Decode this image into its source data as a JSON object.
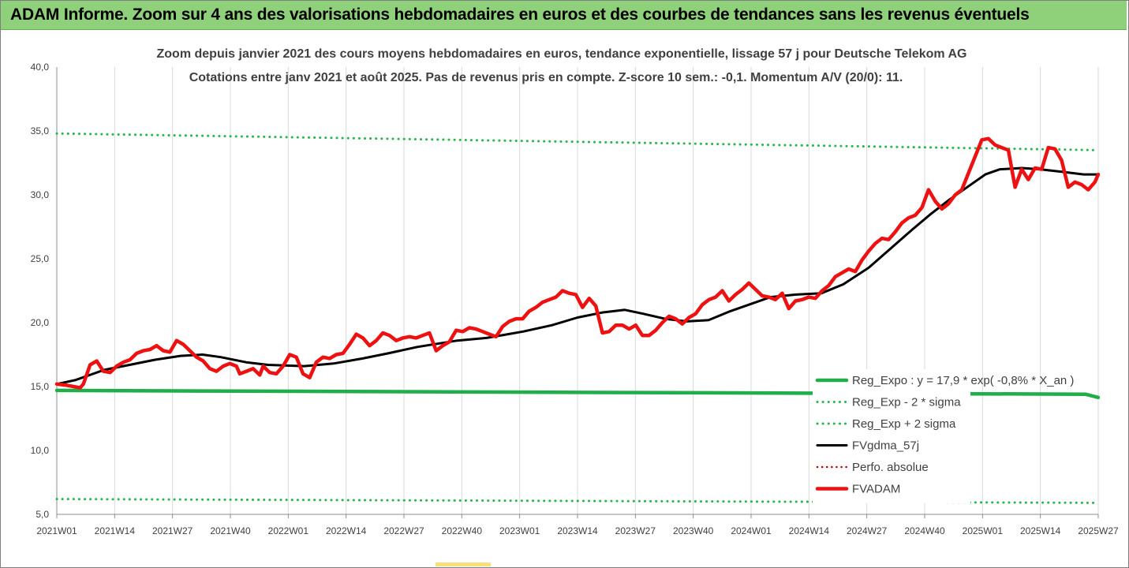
{
  "banner": {
    "title": "ADAM Informe. Zoom sur 4 ans des valorisations hebdomadaires en euros et des courbes de tendances sans les revenus éventuels"
  },
  "colors": {
    "banner_bg": "#8fd07a",
    "reg_expo": "#1fae4a",
    "reg_sigma": "#2ab54f",
    "fvgdma": "#000000",
    "perfo": "#c00000",
    "fvadam": "#ee1111"
  },
  "chart_data": {
    "type": "line",
    "title": [
      "Zoom depuis janvier 2021 des cours moyens hebdomadaires en euros, tendance exponentielle, lissage 57 j pour Deutsche Telekom AG",
      "Cotations entre janv 2021 et août 2025. Pas de revenus pris en compte. Z-score 10 sem.: -0,1. Momentum A/V (20/0): 11."
    ],
    "ylim": [
      5,
      40
    ],
    "y_ticks": [
      "5,0",
      "10,0",
      "15,0",
      "20,0",
      "25,0",
      "30,0",
      "35,0",
      "40,0"
    ],
    "x_ticks": [
      "2021W01",
      "2021W14",
      "2021W27",
      "2021W40",
      "2022W01",
      "2022W14",
      "2022W27",
      "2022W40",
      "2023W01",
      "2023W14",
      "2023W27",
      "2023W40",
      "2024W01",
      "2024W14",
      "2024W27",
      "2024W40",
      "2025W01",
      "2025W14",
      "2025W27"
    ],
    "grid": "vertical",
    "legend_position": "bottom-right",
    "series": [
      {
        "name": "Reg_Expo : y = 17,9 * exp( -0,8% * X_an )",
        "style": "solid-thick",
        "points": [
          [
            0,
            14.7
          ],
          [
            240,
            14.4
          ],
          [
            243,
            14.15
          ]
        ]
      },
      {
        "name": "Reg_Exp - 2 * sigma",
        "style": "dotted",
        "points": [
          [
            0,
            6.2
          ],
          [
            243,
            5.9
          ]
        ]
      },
      {
        "name": "Reg_Exp + 2 sigma",
        "style": "dotted",
        "points": [
          [
            0,
            34.8
          ],
          [
            243,
            33.5
          ]
        ]
      },
      {
        "name": "FVgdma_57j",
        "style": "solid",
        "points": [
          [
            0,
            15.2
          ],
          [
            5,
            15.5
          ],
          [
            13,
            16.3
          ],
          [
            20,
            16.7
          ],
          [
            27,
            17.1
          ],
          [
            34,
            17.4
          ],
          [
            40,
            17.5
          ],
          [
            45,
            17.3
          ],
          [
            52,
            16.9
          ],
          [
            58,
            16.7
          ],
          [
            68,
            16.6
          ],
          [
            76,
            16.8
          ],
          [
            84,
            17.2
          ],
          [
            91,
            17.6
          ],
          [
            99,
            18.1
          ],
          [
            110,
            18.6
          ],
          [
            118,
            18.8
          ],
          [
            128,
            19.3
          ],
          [
            136,
            19.8
          ],
          [
            143,
            20.4
          ],
          [
            150,
            20.8
          ],
          [
            156,
            21.0
          ],
          [
            161,
            20.7
          ],
          [
            167,
            20.3
          ],
          [
            173,
            20.1
          ],
          [
            179,
            20.2
          ],
          [
            185,
            20.9
          ],
          [
            191,
            21.5
          ],
          [
            196,
            22.0
          ],
          [
            203,
            22.2
          ],
          [
            210,
            22.3
          ],
          [
            216,
            23.0
          ],
          [
            223,
            24.3
          ],
          [
            229,
            25.8
          ],
          [
            235,
            27.3
          ],
          [
            240,
            28.5
          ],
          [
            245,
            29.6
          ],
          [
            250,
            30.6
          ],
          [
            255,
            31.6
          ],
          [
            259,
            32.0
          ],
          [
            265,
            32.1
          ],
          [
            270,
            32.0
          ],
          [
            276,
            31.8
          ],
          [
            282,
            31.6
          ],
          [
            286,
            31.6
          ]
        ]
      },
      {
        "name": "Perfo. absolue",
        "style": "dotted",
        "points": []
      },
      {
        "name": "FVADAM",
        "style": "solid-thick",
        "points": [
          [
            0,
            15.2
          ],
          [
            3,
            15.1
          ],
          [
            5,
            15.0
          ],
          [
            7,
            14.9
          ],
          [
            8,
            15.2
          ],
          [
            10,
            16.7
          ],
          [
            12,
            17.0
          ],
          [
            14,
            16.2
          ],
          [
            16,
            16.1
          ],
          [
            18,
            16.6
          ],
          [
            20,
            16.9
          ],
          [
            22,
            17.1
          ],
          [
            24,
            17.6
          ],
          [
            26,
            17.8
          ],
          [
            28,
            17.9
          ],
          [
            30,
            18.2
          ],
          [
            32,
            17.8
          ],
          [
            34,
            17.7
          ],
          [
            36,
            18.6
          ],
          [
            38,
            18.3
          ],
          [
            40,
            17.8
          ],
          [
            42,
            17.3
          ],
          [
            44,
            17.0
          ],
          [
            46,
            16.4
          ],
          [
            48,
            16.2
          ],
          [
            50,
            16.6
          ],
          [
            52,
            16.8
          ],
          [
            54,
            16.6
          ],
          [
            55,
            16.0
          ],
          [
            57,
            16.2
          ],
          [
            59,
            16.4
          ],
          [
            61,
            15.9
          ],
          [
            62,
            16.6
          ],
          [
            64,
            16.1
          ],
          [
            66,
            16.0
          ],
          [
            68,
            16.6
          ],
          [
            70,
            17.5
          ],
          [
            72,
            17.3
          ],
          [
            74,
            16.0
          ],
          [
            76,
            15.7
          ],
          [
            78,
            16.9
          ],
          [
            80,
            17.3
          ],
          [
            82,
            17.2
          ],
          [
            84,
            17.5
          ],
          [
            86,
            17.6
          ],
          [
            88,
            18.3
          ],
          [
            90,
            19.1
          ],
          [
            92,
            18.8
          ],
          [
            94,
            18.2
          ],
          [
            96,
            18.6
          ],
          [
            98,
            19.2
          ],
          [
            100,
            19.0
          ],
          [
            102,
            18.6
          ],
          [
            104,
            18.8
          ],
          [
            106,
            18.9
          ],
          [
            108,
            18.8
          ],
          [
            110,
            19.0
          ],
          [
            112,
            19.2
          ],
          [
            114,
            17.8
          ],
          [
            116,
            18.2
          ],
          [
            118,
            18.5
          ],
          [
            120,
            19.4
          ],
          [
            122,
            19.3
          ],
          [
            124,
            19.6
          ],
          [
            126,
            19.5
          ],
          [
            128,
            19.3
          ],
          [
            130,
            19.1
          ],
          [
            132,
            18.9
          ],
          [
            134,
            19.7
          ],
          [
            136,
            20.1
          ],
          [
            138,
            20.3
          ],
          [
            140,
            20.3
          ],
          [
            142,
            20.9
          ],
          [
            144,
            21.2
          ],
          [
            146,
            21.6
          ],
          [
            148,
            21.8
          ],
          [
            150,
            22.0
          ],
          [
            152,
            22.5
          ],
          [
            154,
            22.3
          ],
          [
            156,
            22.2
          ],
          [
            158,
            21.2
          ],
          [
            160,
            21.9
          ],
          [
            162,
            21.3
          ],
          [
            164,
            19.2
          ],
          [
            166,
            19.3
          ],
          [
            168,
            19.8
          ],
          [
            170,
            19.8
          ],
          [
            172,
            19.5
          ],
          [
            174,
            19.8
          ],
          [
            176,
            19.0
          ],
          [
            178,
            19.0
          ],
          [
            180,
            19.4
          ],
          [
            182,
            20.0
          ],
          [
            184,
            20.5
          ],
          [
            186,
            20.3
          ],
          [
            188,
            19.9
          ],
          [
            190,
            20.4
          ],
          [
            192,
            20.7
          ],
          [
            194,
            21.4
          ],
          [
            196,
            21.8
          ],
          [
            198,
            22.0
          ],
          [
            200,
            22.5
          ],
          [
            202,
            21.7
          ],
          [
            204,
            22.2
          ],
          [
            206,
            22.6
          ],
          [
            208,
            23.1
          ],
          [
            210,
            22.6
          ],
          [
            212,
            22.1
          ],
          [
            214,
            22.0
          ],
          [
            216,
            21.8
          ],
          [
            218,
            22.3
          ],
          [
            220,
            21.1
          ],
          [
            222,
            21.7
          ],
          [
            224,
            21.8
          ],
          [
            226,
            22.0
          ],
          [
            228,
            21.9
          ],
          [
            230,
            22.5
          ],
          [
            232,
            22.9
          ],
          [
            234,
            23.6
          ],
          [
            236,
            23.9
          ],
          [
            238,
            24.2
          ],
          [
            240,
            24.0
          ],
          [
            242,
            24.9
          ],
          [
            244,
            25.6
          ],
          [
            246,
            26.2
          ],
          [
            248,
            26.6
          ],
          [
            250,
            26.5
          ],
          [
            252,
            27.1
          ],
          [
            254,
            27.8
          ],
          [
            256,
            28.2
          ],
          [
            258,
            28.4
          ],
          [
            260,
            29.0
          ],
          [
            262,
            30.4
          ],
          [
            264,
            29.5
          ],
          [
            266,
            28.9
          ],
          [
            268,
            29.3
          ],
          [
            270,
            30.0
          ],
          [
            272,
            30.4
          ],
          [
            274,
            31.7
          ],
          [
            276,
            33.0
          ],
          [
            278,
            34.3
          ],
          [
            280,
            34.4
          ],
          [
            282,
            33.9
          ],
          [
            284,
            33.7
          ],
          [
            286,
            33.5
          ],
          [
            288,
            30.6
          ],
          [
            290,
            32.0
          ],
          [
            292,
            31.2
          ],
          [
            294,
            32.1
          ],
          [
            296,
            32.0
          ],
          [
            298,
            33.7
          ],
          [
            300,
            33.6
          ],
          [
            302,
            32.7
          ],
          [
            304,
            30.6
          ],
          [
            306,
            31.0
          ],
          [
            308,
            30.8
          ],
          [
            310,
            30.4
          ],
          [
            312,
            31.0
          ],
          [
            313,
            31.6
          ]
        ]
      }
    ]
  }
}
